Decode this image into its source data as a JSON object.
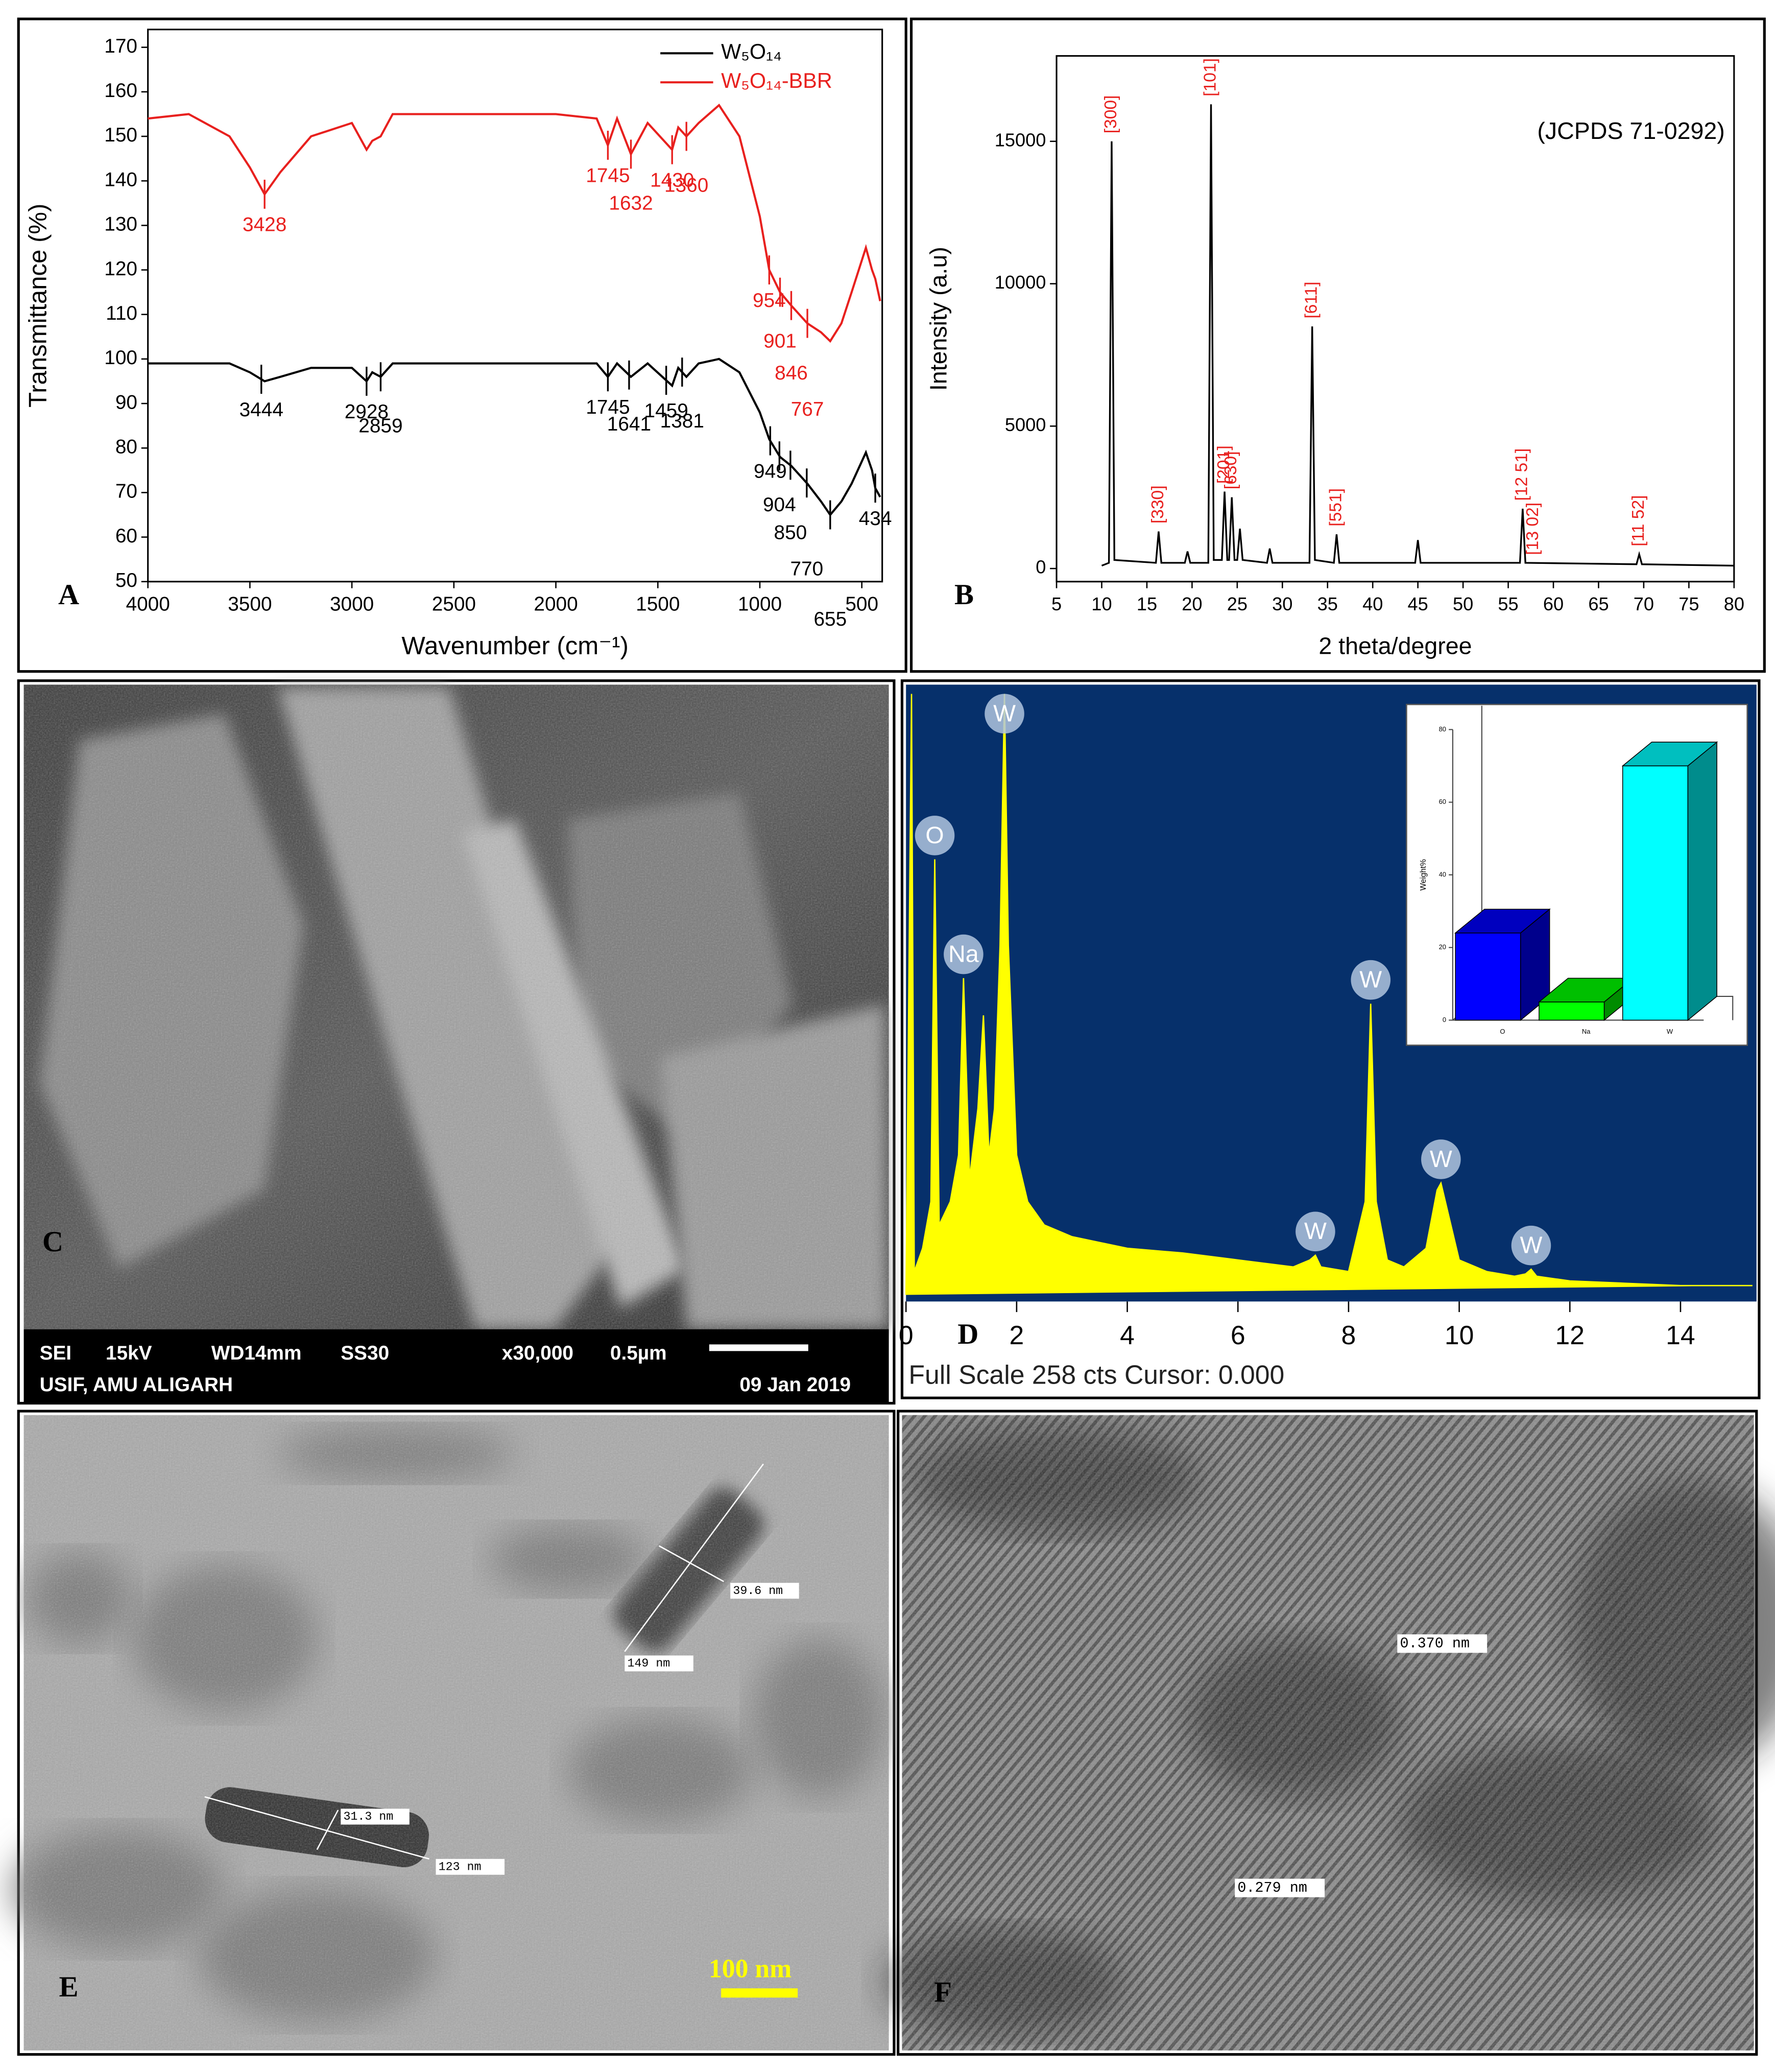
{
  "chart_data": [
    {
      "panel": "A",
      "type": "line",
      "xlabel": "Wavenumber (cm⁻¹)",
      "ylabel": "Transmittance (%)",
      "xlim": [
        4000,
        400
      ],
      "xticks": [
        4000,
        3500,
        3000,
        2500,
        2000,
        1500,
        1000,
        500
      ],
      "ylim": [
        50,
        174
      ],
      "yticks": [
        50,
        60,
        70,
        80,
        90,
        100,
        110,
        120,
        130,
        140,
        150,
        160,
        170
      ],
      "legend": "upper right",
      "x": [
        4000,
        3800,
        3600,
        3500,
        3428,
        3350,
        3200,
        3000,
        2928,
        2900,
        2859,
        2800,
        2600,
        2400,
        2200,
        2000,
        1800,
        1745,
        1700,
        1632,
        1550,
        1430,
        1400,
        1360,
        1300,
        1200,
        1100,
        1000,
        954,
        901,
        846,
        767,
        700,
        655,
        600,
        550,
        480,
        450,
        434,
        410
      ],
      "series": [
        {
          "name": "W₅O₁₄",
          "color": "#000000",
          "values": [
            99,
            99,
            99,
            97,
            95,
            96,
            98,
            98,
            95,
            97,
            96,
            99,
            99,
            99,
            99,
            99,
            99,
            96,
            99,
            96,
            99,
            94,
            98,
            96,
            99,
            100,
            97,
            88,
            82,
            78,
            76,
            72,
            68,
            65,
            68,
            72,
            79,
            75,
            71,
            69
          ],
          "peaks": [
            3444,
            2928,
            2859,
            1745,
            1641,
            1459,
            1381,
            949,
            904,
            850,
            770,
            655,
            434
          ]
        },
        {
          "name": "W₅O₁₄-BBR",
          "color": "#e8201e",
          "values": [
            154,
            155,
            150,
            143,
            137,
            142,
            150,
            153,
            147,
            149,
            150,
            155,
            155,
            155,
            155,
            155,
            154,
            148,
            154,
            146,
            153,
            147,
            152,
            150,
            153,
            157,
            150,
            132,
            120,
            115,
            112,
            108,
            106,
            104,
            108,
            115,
            125,
            120,
            118,
            113
          ],
          "peaks": [
            3428,
            1745,
            1632,
            1430,
            1360,
            954,
            901,
            846,
            767
          ]
        }
      ]
    },
    {
      "panel": "B",
      "type": "line",
      "xlabel": "2 theta/degree",
      "ylabel": "Intensity (a.u)",
      "text": "(JCPDS 71-0292)",
      "xlim": [
        5,
        80
      ],
      "xticks": [
        5,
        10,
        15,
        20,
        25,
        30,
        35,
        40,
        45,
        50,
        55,
        60,
        65,
        70,
        75,
        80
      ],
      "ylim": [
        -460,
        18000
      ],
      "yticks": [
        0,
        5000,
        10000,
        15000
      ],
      "color": "#000000",
      "x": [
        10,
        10.8,
        11.1,
        11.4,
        16,
        16.3,
        16.6,
        19.2,
        19.5,
        19.8,
        21.8,
        22.1,
        22.4,
        23.3,
        23.6,
        23.9,
        24.1,
        24.4,
        24.7,
        25,
        25.3,
        25.6,
        28.3,
        28.6,
        28.9,
        33,
        33.3,
        33.6,
        35.7,
        36,
        36.3,
        44.7,
        45,
        45.3,
        56.3,
        56.6,
        56.9,
        69.2,
        69.5,
        69.8,
        80
      ],
      "values": [
        100,
        200,
        15000,
        300,
        200,
        1300,
        200,
        200,
        600,
        200,
        200,
        16300,
        300,
        300,
        2700,
        300,
        300,
        2500,
        300,
        300,
        1400,
        300,
        200,
        700,
        200,
        200,
        8500,
        300,
        200,
        1200,
        200,
        200,
        1000,
        200,
        200,
        2100,
        200,
        150,
        500,
        150,
        100
      ],
      "annotations": [
        {
          "x": 11.1,
          "label": "[300]"
        },
        {
          "x": 16.3,
          "label": "[330]"
        },
        {
          "x": 22.1,
          "label": "[101]"
        },
        {
          "x": 23.6,
          "label": "[201]"
        },
        {
          "x": 24.4,
          "label": "[630]"
        },
        {
          "x": 33.3,
          "label": "[611]"
        },
        {
          "x": 36,
          "label": "[551]"
        },
        {
          "x": 56.6,
          "label": "[12 51]"
        },
        {
          "x": 57.8,
          "label": "[13 02]"
        },
        {
          "x": 69.5,
          "label": "[11 52]"
        }
      ]
    },
    {
      "panel": "D",
      "type": "area",
      "footer": "Full Scale 258 cts Cursor: 0.000",
      "color": "#ffff00",
      "background": "#06306b",
      "xlim": [
        0,
        15.35
      ],
      "xticks": [
        0,
        2,
        4,
        6,
        8,
        10,
        12,
        14
      ],
      "ylim": [
        0,
        258
      ],
      "x": [
        0,
        0.1,
        0.15,
        0.3,
        0.45,
        0.52,
        0.6,
        0.8,
        0.95,
        1.04,
        1.15,
        1.3,
        1.4,
        1.5,
        1.6,
        1.7,
        1.78,
        1.85,
        2.0,
        2.2,
        2.5,
        3,
        4,
        5,
        6,
        7,
        7.3,
        7.4,
        7.5,
        8,
        8.3,
        8.4,
        8.5,
        8.7,
        9,
        9.4,
        9.6,
        9.67,
        9.8,
        10,
        10.5,
        11,
        11.2,
        11.3,
        11.4,
        12,
        13,
        14,
        15.3
      ],
      "values": [
        0,
        258,
        10,
        20,
        40,
        187,
        30,
        40,
        60,
        136,
        50,
        80,
        120,
        60,
        80,
        150,
        258,
        150,
        60,
        40,
        30,
        25,
        20,
        18,
        15,
        12,
        15,
        17,
        12,
        10,
        40,
        125,
        40,
        15,
        12,
        20,
        45,
        48,
        35,
        15,
        10,
        8,
        9,
        11,
        8,
        6,
        5,
        4,
        4
      ],
      "annotations": [
        {
          "x": 0.52,
          "label": "O"
        },
        {
          "x": 1.04,
          "label": "Na"
        },
        {
          "x": 1.78,
          "label": "W"
        },
        {
          "x": 7.4,
          "label": "W"
        },
        {
          "x": 8.4,
          "label": "W"
        },
        {
          "x": 9.67,
          "label": "W"
        },
        {
          "x": 11.3,
          "label": "W"
        }
      ]
    },
    {
      "type": "bar3d",
      "ylabel": "Weight%",
      "categories": [
        "O",
        "Na",
        "W"
      ],
      "values": [
        24,
        5,
        70
      ],
      "colors": [
        "#0000ff",
        "#00ff00",
        "#00ffff"
      ],
      "ylim": [
        0,
        80
      ],
      "yticks": [
        0,
        20,
        40,
        60,
        80
      ]
    }
  ],
  "images": {
    "C": {
      "panel": "C",
      "info": [
        [
          "SEI",
          "15kV",
          "WD14mm",
          "SS30",
          "x30,000",
          "0.5µm"
        ],
        [
          "USIF, AMU ALIGARH",
          "09 Jan 2019"
        ]
      ]
    },
    "E": {
      "panel": "E",
      "measurements": [
        "39.6 nm",
        "149 nm",
        "31.3 nm",
        "123 nm"
      ],
      "scale_bar": "100 nm"
    },
    "F": {
      "panel": "F",
      "measurements": [
        "0.370 nm",
        "0.279 nm"
      ]
    }
  }
}
